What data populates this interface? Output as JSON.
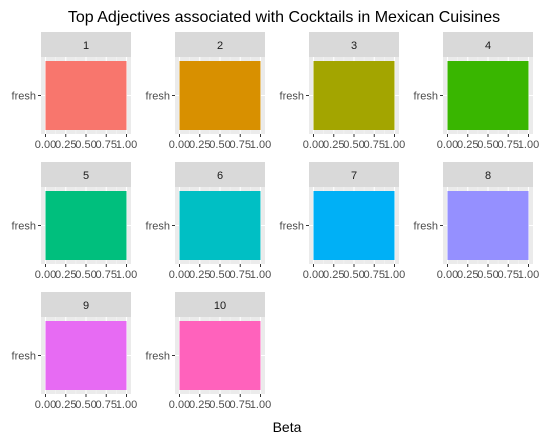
{
  "chart_data": {
    "type": "bar",
    "title": "Top Adjectives associated with Cocktails in Mexican Cuisines",
    "xlabel": "Beta",
    "ylabel": "",
    "xlim": [
      0,
      1
    ],
    "x_ticks": [
      "0.00",
      "0.25",
      "0.50",
      "0.75",
      "1.00"
    ],
    "grid": true,
    "orientation": "horizontal",
    "panels": [
      {
        "label": "1",
        "category": "fresh",
        "value": 1.0,
        "color": "#F8766D"
      },
      {
        "label": "2",
        "category": "fresh",
        "value": 1.0,
        "color": "#D89000"
      },
      {
        "label": "3",
        "category": "fresh",
        "value": 1.0,
        "color": "#A3A500"
      },
      {
        "label": "4",
        "category": "fresh",
        "value": 1.0,
        "color": "#39B600"
      },
      {
        "label": "5",
        "category": "fresh",
        "value": 1.0,
        "color": "#00BF7D"
      },
      {
        "label": "6",
        "category": "fresh",
        "value": 1.0,
        "color": "#00BFC4"
      },
      {
        "label": "7",
        "category": "fresh",
        "value": 1.0,
        "color": "#00B0F6"
      },
      {
        "label": "8",
        "category": "fresh",
        "value": 1.0,
        "color": "#9590FF"
      },
      {
        "label": "9",
        "category": "fresh",
        "value": 1.0,
        "color": "#E76BF3"
      },
      {
        "label": "10",
        "category": "fresh",
        "value": 1.0,
        "color": "#FF62BC"
      }
    ]
  }
}
